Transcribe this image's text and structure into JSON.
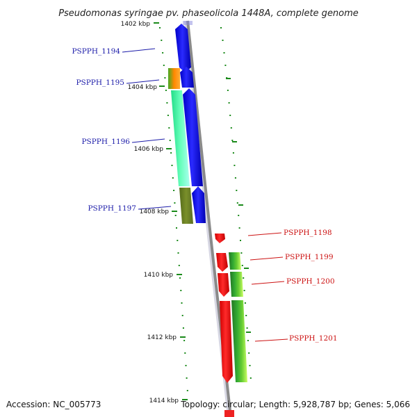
{
  "title": "Pseudomonas syringae pv. phaseolicola 1448A, complete genome",
  "footer": {
    "accession": "Accession: NC_005773",
    "stats": "Topology: circular; Length: 5,928,787 bp; Genes: 5,066"
  },
  "scale_labels": [
    "1402 kbp",
    "1404 kbp",
    "1406 kbp",
    "1408 kbp",
    "1410 kbp",
    "1412 kbp",
    "1414 kbp"
  ],
  "genes_forward": [
    {
      "name": "PSPPH_1194"
    },
    {
      "name": "PSPPH_1195"
    },
    {
      "name": "PSPPH_1196"
    },
    {
      "name": "PSPPH_1197"
    }
  ],
  "genes_reverse": [
    {
      "name": "PSPPH_1198"
    },
    {
      "name": "PSPPH_1199"
    },
    {
      "name": "PSPPH_1200"
    },
    {
      "name": "PSPPH_1201"
    }
  ],
  "colors": {
    "forward_strand": "#0000ee",
    "reverse_strand": "#ee0000",
    "backbone": "#8a8a8a",
    "ticks": "#1a8a1a",
    "label_blue": "#1a1aa8",
    "label_red": "#cc1111"
  }
}
